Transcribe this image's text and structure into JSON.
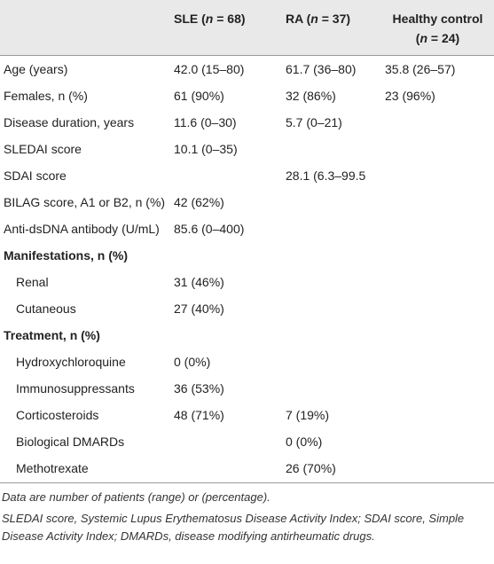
{
  "table": {
    "header": [
      [
        "SLE (",
        "n",
        " = 68)"
      ],
      [
        "RA (",
        "n",
        " = 37)"
      ],
      [
        "Healthy control (",
        "n",
        " = 24)"
      ]
    ],
    "rows": [
      {
        "label": "Age (years)",
        "values": [
          "42.0 (15–80)",
          "61.7 (36–80)",
          "35.8 (26–57)"
        ]
      },
      {
        "label": "Females, n (%)",
        "values": [
          "61 (90%)",
          "32 (86%)",
          "23 (96%)"
        ]
      },
      {
        "label": "Disease duration, years",
        "values": [
          "11.6 (0–30)",
          "5.7 (0–21)",
          null
        ]
      },
      {
        "label": "SLEDAI score",
        "values": [
          "10.1 (0–35)",
          null,
          null
        ]
      },
      {
        "label": "SDAI score",
        "values": [
          null,
          "28.1 (6.3–99.5",
          null
        ]
      },
      {
        "label": "BILAG score, A1 or B2, n (%)",
        "values": [
          "42 (62%)",
          null,
          null
        ]
      },
      {
        "label": "Anti-dsDNA antibody (U/mL)",
        "values": [
          "85.6 (0–400)",
          null,
          null
        ]
      }
    ],
    "groups": [
      {
        "title": "Manifestations, n (%)",
        "rows": [
          {
            "label": "Renal",
            "values": [
              "31 (46%)",
              null,
              null
            ]
          },
          {
            "label": "Cutaneous",
            "values": [
              "27 (40%)",
              null,
              null
            ]
          }
        ]
      },
      {
        "title": "Treatment, n (%)",
        "rows": [
          {
            "label": "Hydroxychloroquine",
            "values": [
              "0 (0%)",
              null,
              null
            ]
          },
          {
            "label": "Immunosuppressants",
            "values": [
              "36 (53%)",
              null,
              null
            ]
          },
          {
            "label": "Corticosteroids",
            "values": [
              "48 (71%)",
              "7 (19%)",
              null
            ]
          },
          {
            "label": "Biological DMARDs",
            "values": [
              null,
              "0 (0%)",
              null
            ]
          },
          {
            "label": "Methotrexate",
            "values": [
              null,
              "26 (70%)",
              null
            ]
          }
        ]
      }
    ]
  },
  "footnotes": [
    "Data are number of patients (range) or (percentage).",
    "SLEDAI score, Systemic Lupus Erythematosus Disease Activity Index; SDAI score, Simple Disease Activity Index; DMARDs, disease modifying antirheumatic drugs."
  ]
}
